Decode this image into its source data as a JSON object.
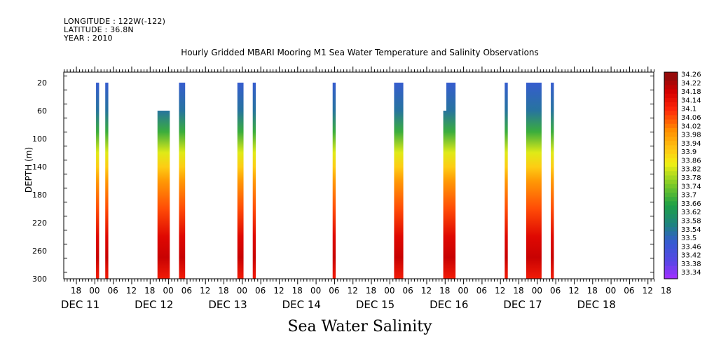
{
  "header": {
    "longitude": "LONGITUDE : 122W(-122)",
    "latitude": "LATITUDE : 36.8N",
    "year": "YEAR : 2010"
  },
  "chart_data": {
    "type": "heatmap",
    "title": "Hourly Gridded MBARI Mooring M1 Sea Water Temperature and Salinity Observations",
    "subtitle": "Sea Water Salinity",
    "ylabel": "DEPTH (m)",
    "xlabel": "",
    "x_hour_ticks": [
      "18",
      "00",
      "06",
      "12",
      "18",
      "00",
      "06",
      "12",
      "18",
      "00",
      "06",
      "12",
      "18",
      "00",
      "06",
      "12",
      "18",
      "00",
      "06",
      "12",
      "18",
      "00",
      "06",
      "12",
      "18",
      "00",
      "06",
      "12",
      "18",
      "00",
      "06",
      "12",
      "18"
    ],
    "x_day_labels": [
      "DEC 11",
      "DEC 12",
      "DEC 13",
      "DEC 14",
      "DEC 15",
      "DEC 16",
      "DEC 17",
      "DEC 18"
    ],
    "xlim_hours": [
      -10,
      182
    ],
    "y_ticks": [
      20,
      60,
      100,
      140,
      180,
      220,
      260,
      300
    ],
    "ylim": [
      300,
      5
    ],
    "colorbar": {
      "labels": [
        "34.26",
        "34.22",
        "34.18",
        "34.14",
        "34.1",
        "34.06",
        "34.02",
        "33.98",
        "33.94",
        "33.9",
        "33.86",
        "33.82",
        "33.78",
        "33.74",
        "33.7",
        "33.66",
        "33.62",
        "33.58",
        "33.54",
        "33.5",
        "33.46",
        "33.42",
        "33.38",
        "33.34"
      ],
      "range": [
        33.34,
        34.26
      ]
    },
    "profiles": [
      {
        "x_start": 0.5,
        "x_end": 1.5,
        "top_depth": 20
      },
      {
        "x_start": 3.5,
        "x_end": 4.5,
        "top_depth": 20
      },
      {
        "x_start": 20.5,
        "x_end": 24.5,
        "top_depth": 60
      },
      {
        "x_start": 27.5,
        "x_end": 29.5,
        "top_depth": 20
      },
      {
        "x_start": 46.5,
        "x_end": 48.5,
        "top_depth": 20
      },
      {
        "x_start": 51.5,
        "x_end": 52.5,
        "top_depth": 20
      },
      {
        "x_start": 77.5,
        "x_end": 78.5,
        "top_depth": 20
      },
      {
        "x_start": 97.5,
        "x_end": 100.5,
        "top_depth": 20
      },
      {
        "x_start": 113.5,
        "x_end": 117.5,
        "top_depth": 60,
        "top_depth_right": 20
      },
      {
        "x_start": 133.5,
        "x_end": 134.5,
        "top_depth": 20
      },
      {
        "x_start": 140.5,
        "x_end": 145.5,
        "top_depth": 20
      },
      {
        "x_start": 148.5,
        "x_end": 149.5,
        "top_depth": 20
      }
    ],
    "depth_profile": [
      {
        "depth": 20,
        "value": 33.5
      },
      {
        "depth": 60,
        "value": 33.55
      },
      {
        "depth": 90,
        "value": 33.7
      },
      {
        "depth": 120,
        "value": 33.85
      },
      {
        "depth": 140,
        "value": 33.92
      },
      {
        "depth": 160,
        "value": 34.0
      },
      {
        "depth": 200,
        "value": 34.08
      },
      {
        "depth": 240,
        "value": 34.18
      },
      {
        "depth": 270,
        "value": 34.21
      },
      {
        "depth": 300,
        "value": 34.14
      }
    ],
    "colors": {
      "low": "#9b30ff",
      "high": "#9a1010"
    }
  }
}
